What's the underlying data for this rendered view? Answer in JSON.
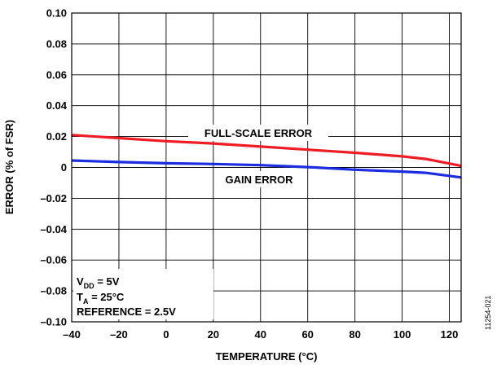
{
  "chart_data": {
    "type": "line",
    "title": "",
    "xlabel": "TEMPERATURE (°C)",
    "ylabel": "ERROR (% of FSR)",
    "xlim": [
      -40,
      125
    ],
    "ylim": [
      -0.1,
      0.1
    ],
    "grid": true,
    "x_ticks": [
      -40,
      -20,
      0,
      20,
      40,
      60,
      80,
      100,
      120
    ],
    "x_tick_labels": [
      "–40",
      "–20",
      "0",
      "20",
      "40",
      "60",
      "80",
      "100",
      "120"
    ],
    "y_ticks": [
      0.1,
      0.08,
      0.06,
      0.04,
      0.02,
      0,
      -0.02,
      -0.04,
      -0.06,
      -0.08,
      -0.1
    ],
    "y_tick_labels": [
      "0.10",
      "0.08",
      "0.06",
      "0.04",
      "0.02",
      "0",
      "–0.02",
      "–0.04",
      "–0.06",
      "–0.08",
      "–0.10"
    ],
    "series": [
      {
        "name": "FULL-SCALE ERROR",
        "color": "#ee1c25",
        "x": [
          -40,
          -20,
          0,
          20,
          40,
          60,
          80,
          100,
          110,
          125
        ],
        "y": [
          0.021,
          0.019,
          0.017,
          0.0155,
          0.0135,
          0.0115,
          0.0095,
          0.0072,
          0.0055,
          0.001
        ]
      },
      {
        "name": "GAIN ERROR",
        "color": "#1b2ddf",
        "x": [
          -40,
          -20,
          0,
          20,
          40,
          60,
          80,
          100,
          110,
          125
        ],
        "y": [
          0.0045,
          0.0035,
          0.0027,
          0.0022,
          0.0015,
          0.0002,
          -0.0015,
          -0.0027,
          -0.0035,
          -0.0065
        ]
      }
    ],
    "annotations": {
      "conditions": [
        {
          "main": "V",
          "sub": "DD",
          "rest": " = 5V"
        },
        {
          "main": "T",
          "sub": "A",
          "rest": " = 25°C"
        },
        {
          "main": "REFERENCE = 2.5V",
          "sub": "",
          "rest": ""
        }
      ],
      "figure_id": "11254-021"
    }
  }
}
